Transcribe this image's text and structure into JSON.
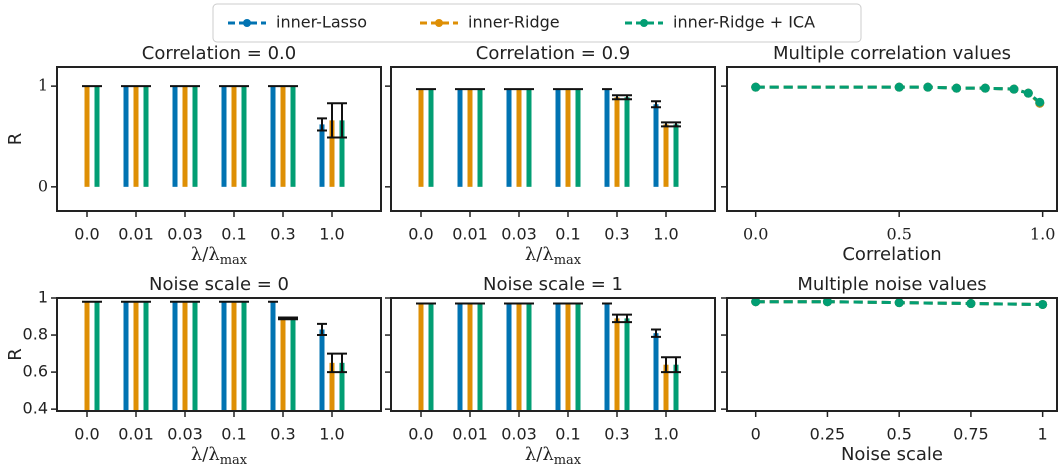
{
  "chart_data": [
    {
      "type": "bar",
      "title": "Correlation = 0.0",
      "ylabel": "R",
      "xlabel": "λ/λ",
      "xlabel_sub": "max",
      "categories": [
        "0.0",
        "0.01",
        "0.03",
        "0.1",
        "0.3",
        "1.0"
      ],
      "series": [
        {
          "name": "inner-Lasso",
          "color": "#0173b2",
          "values": [
            null,
            1,
            1,
            1,
            1,
            0.62
          ],
          "errors": [
            null,
            0,
            0,
            0,
            0,
            0.06
          ]
        },
        {
          "name": "inner-Ridge",
          "color": "#de8f05",
          "values": [
            1,
            1,
            1,
            1,
            1,
            0.66
          ],
          "errors": [
            0,
            0,
            0,
            0,
            0,
            0.17
          ]
        },
        {
          "name": "inner-Ridge + ICA",
          "color": "#029e73",
          "values": [
            1,
            1,
            1,
            1,
            1,
            0.66
          ],
          "errors": [
            0,
            0,
            0,
            0,
            0,
            0.17
          ]
        }
      ],
      "ylim": [
        -0.24,
        1.19
      ],
      "yticks": [
        0,
        1
      ]
    },
    {
      "type": "bar",
      "title": "Correlation = 0.9",
      "xlabel": "λ/λ",
      "xlabel_sub": "max",
      "categories": [
        "0.0",
        "0.01",
        "0.03",
        "0.1",
        "0.3",
        "1.0"
      ],
      "series": [
        {
          "color": "#0173b2",
          "values": [
            null,
            0.97,
            0.97,
            0.97,
            0.97,
            0.82
          ],
          "errors": [
            null,
            0,
            0,
            0,
            0,
            0.03
          ]
        },
        {
          "color": "#de8f05",
          "values": [
            0.97,
            0.97,
            0.97,
            0.97,
            0.89,
            0.62
          ],
          "errors": [
            0,
            0,
            0,
            0,
            0.02,
            0.02
          ]
        },
        {
          "color": "#029e73",
          "values": [
            0.97,
            0.97,
            0.97,
            0.97,
            0.89,
            0.62
          ],
          "errors": [
            0,
            0,
            0,
            0,
            0.02,
            0.02
          ]
        }
      ],
      "ylim": [
        -0.24,
        1.19
      ],
      "yticks": [
        0,
        1
      ]
    },
    {
      "type": "line",
      "title": "Multiple correlation values",
      "xlabel": "Correlation",
      "x": [
        0,
        0.5,
        0.6,
        0.7,
        0.8,
        0.9,
        0.95,
        0.99
      ],
      "series": [
        {
          "color": "#0173b2",
          "values": [
            0.99,
            0.99,
            0.99,
            0.98,
            0.98,
            0.97,
            0.93,
            0.83
          ]
        },
        {
          "color": "#de8f05",
          "values": [
            0.99,
            0.99,
            0.99,
            0.98,
            0.98,
            0.97,
            0.93,
            0.83
          ]
        },
        {
          "color": "#029e73",
          "values": [
            0.99,
            0.99,
            0.99,
            0.98,
            0.98,
            0.97,
            0.93,
            0.84
          ]
        }
      ],
      "xlim": [
        -0.1,
        1.05
      ],
      "xticks": [
        {
          "value": 0,
          "label": "0.0"
        },
        0.5,
        {
          "value": 1,
          "label": "1.0"
        }
      ],
      "ylim": [
        -0.24,
        1.19
      ],
      "yticks": [
        0,
        1
      ]
    },
    {
      "type": "bar",
      "title": "Noise scale = 0",
      "ylabel": "R",
      "xlabel": "λ/λ",
      "xlabel_sub": "max",
      "categories": [
        "0.0",
        "0.01",
        "0.03",
        "0.1",
        "0.3",
        "1.0"
      ],
      "series": [
        {
          "color": "#0173b2",
          "values": [
            null,
            0.98,
            0.98,
            0.98,
            0.98,
            0.83
          ],
          "errors": [
            null,
            0,
            0,
            0,
            0,
            0.03
          ]
        },
        {
          "color": "#de8f05",
          "values": [
            0.98,
            0.98,
            0.98,
            0.98,
            0.89,
            0.65
          ],
          "errors": [
            0,
            0,
            0,
            0,
            0.005,
            0.05
          ]
        },
        {
          "color": "#029e73",
          "values": [
            0.98,
            0.98,
            0.98,
            0.98,
            0.89,
            0.65
          ],
          "errors": [
            0,
            0,
            0,
            0,
            0.005,
            0.05
          ]
        }
      ],
      "ylim": [
        0.39,
        1.0
      ],
      "yticks": [
        0.4,
        0.6,
        0.8,
        1
      ]
    },
    {
      "type": "bar",
      "title": "Noise scale = 1",
      "xlabel": "λ/λ",
      "xlabel_sub": "max",
      "categories": [
        "0.0",
        "0.01",
        "0.03",
        "0.1",
        "0.3",
        "1.0"
      ],
      "series": [
        {
          "color": "#0173b2",
          "values": [
            null,
            0.97,
            0.97,
            0.97,
            0.97,
            0.81
          ],
          "errors": [
            null,
            0,
            0,
            0,
            0,
            0.02
          ]
        },
        {
          "color": "#de8f05",
          "values": [
            0.97,
            0.97,
            0.97,
            0.97,
            0.89,
            0.64
          ],
          "errors": [
            0,
            0,
            0,
            0,
            0.02,
            0.04
          ]
        },
        {
          "color": "#029e73",
          "values": [
            0.97,
            0.97,
            0.97,
            0.97,
            0.89,
            0.64
          ],
          "errors": [
            0,
            0,
            0,
            0,
            0.02,
            0.04
          ]
        }
      ],
      "ylim": [
        0.39,
        1.0
      ],
      "yticks": [
        0.4,
        0.6,
        0.8,
        1
      ]
    },
    {
      "type": "line",
      "title": "Multiple noise values",
      "xlabel": "Noise scale",
      "x": [
        0,
        0.25,
        0.5,
        0.75,
        1
      ],
      "series": [
        {
          "color": "#0173b2",
          "values": [
            0.98,
            0.98,
            0.975,
            0.97,
            0.965
          ]
        },
        {
          "color": "#de8f05",
          "values": [
            0.98,
            0.98,
            0.975,
            0.97,
            0.965
          ]
        },
        {
          "color": "#029e73",
          "values": [
            0.98,
            0.98,
            0.975,
            0.97,
            0.965
          ]
        }
      ],
      "xlim": [
        -0.1,
        1.05
      ],
      "xticks": [
        0,
        0.25,
        0.5,
        0.75,
        1
      ],
      "ylim": [
        0.39,
        1.0
      ],
      "yticks": [
        0.4,
        0.6,
        0.8,
        1
      ]
    }
  ]
}
